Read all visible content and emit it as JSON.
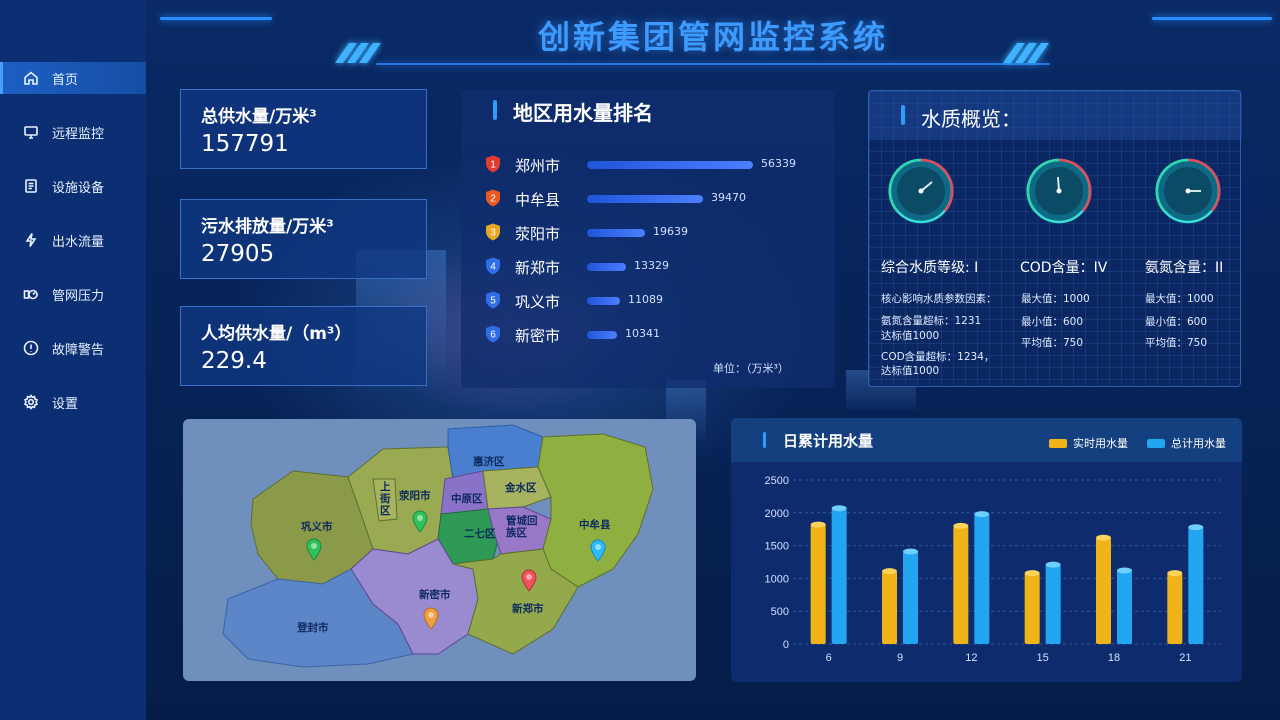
{
  "app": {
    "title": "创新集团管网监控系统"
  },
  "sidebar": {
    "items": [
      {
        "label": "首页",
        "icon": "home-icon",
        "active": true
      },
      {
        "label": "远程监控",
        "icon": "monitor-icon",
        "active": false
      },
      {
        "label": "设施设备",
        "icon": "document-icon",
        "active": false
      },
      {
        "label": "出水流量",
        "icon": "lightning-icon",
        "active": false
      },
      {
        "label": "管网压力",
        "icon": "pipe-gauge-icon",
        "active": false
      },
      {
        "label": "故障警告",
        "icon": "alert-circle-icon",
        "active": false
      },
      {
        "label": "设置",
        "icon": "gear-icon",
        "active": false
      }
    ]
  },
  "stats": [
    {
      "label": "总供水量/万米³",
      "value": "157791"
    },
    {
      "label": "污水排放量/万米³",
      "value": "27905"
    },
    {
      "label": "人均供水量/（m³）",
      "value": "229.4"
    }
  ],
  "ranking": {
    "title": "地区用水量排名",
    "unit": "单位：（万米³）",
    "badge_colors": [
      "#e23b2f",
      "#ea5a1f",
      "#e6a822",
      "#2f6ee6",
      "#2f6ee6",
      "#2f6ee6"
    ],
    "rows": [
      {
        "rank": "1",
        "city": "郑州市",
        "value": 56339
      },
      {
        "rank": "2",
        "city": "中牟县",
        "value": 39470
      },
      {
        "rank": "3",
        "city": "荥阳市",
        "value": 19639
      },
      {
        "rank": "4",
        "city": "新郑市",
        "value": 13329
      },
      {
        "rank": "5",
        "city": "巩义市",
        "value": 11089
      },
      {
        "rank": "6",
        "city": "新密市",
        "value": 10341
      }
    ]
  },
  "water_quality": {
    "title": "水质概览：",
    "gauges": [
      {
        "label": "综合水质等级: I"
      },
      {
        "label": "COD含量：IV"
      },
      {
        "label": "氨氮含量：II"
      }
    ],
    "notes": {
      "col1": [
        "核心影响水质参数因素：",
        "氨氮含量超标：1231",
        "达标值1000",
        "COD含量超标：1234，",
        "达标值1000"
      ],
      "col2": [
        "最大值：1000",
        "最小值：600",
        "平均值：750"
      ],
      "col3": [
        "最大值：1000",
        "最小值：600",
        "平均值：750"
      ]
    }
  },
  "map": {
    "regions": [
      "惠济区",
      "上街区",
      "荥阳市",
      "中原区",
      "金水区",
      "巩义市",
      "二七区",
      "管城回族区",
      "中牟县",
      "新密市",
      "新郑市",
      "登封市"
    ],
    "markers": [
      {
        "region": "巩义市",
        "color": "#2fc25b"
      },
      {
        "region": "荥阳市",
        "color": "#2fc25b"
      },
      {
        "region": "中牟县",
        "color": "#2bbcff"
      },
      {
        "region": "新郑市",
        "color": "#f0525c"
      },
      {
        "region": "新密市",
        "color": "#f0a040"
      }
    ]
  },
  "chart_data": {
    "type": "bar",
    "title": "日累计用水量",
    "categories": [
      "6",
      "9",
      "12",
      "15",
      "18",
      "21"
    ],
    "series": [
      {
        "name": "实时用水量",
        "color": "#f0b418",
        "values": [
          1820,
          1110,
          1800,
          1080,
          1620,
          1080
        ]
      },
      {
        "name": "总计用水量",
        "color": "#23a6f2",
        "values": [
          2070,
          1410,
          1980,
          1210,
          1120,
          1780
        ]
      }
    ],
    "ylim": [
      0,
      2500
    ],
    "yticks": [
      "2500",
      "2000",
      "1500",
      "1000",
      "500",
      "0"
    ],
    "grid": true,
    "legend": "top-right"
  }
}
